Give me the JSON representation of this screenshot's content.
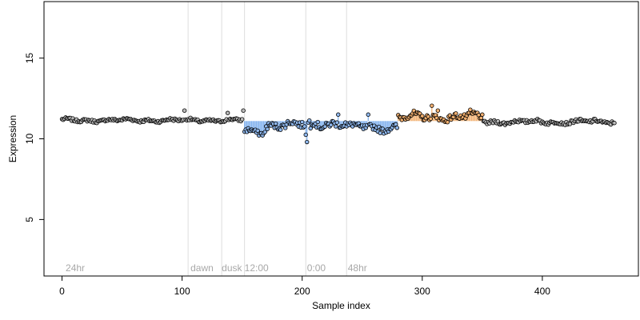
{
  "chart_data": {
    "type": "scatter",
    "title": "",
    "xlabel": "Sample index",
    "ylabel": "Expression",
    "xlim": [
      -15,
      480
    ],
    "ylim": [
      1.5,
      18.5
    ],
    "xticks": [
      0,
      100,
      200,
      300,
      400
    ],
    "yticks": [
      5,
      10,
      15
    ],
    "baseline": 11.1,
    "colors": {
      "point_outline": "#000000",
      "point_neutral": "#bbbbbb",
      "point_low": "#8fb8ee",
      "point_high": "#f2b070",
      "stem_low": "#7fb0ee",
      "stem_high": "#f2b070",
      "vline": "#dddddd",
      "region_label": "#a8a8a8"
    },
    "vlines": [
      105,
      133,
      152,
      203,
      237
    ],
    "region_labels": [
      {
        "text": "24hr",
        "x": 3
      },
      {
        "text": "dawn",
        "x": 107
      },
      {
        "text": "dusk",
        "x": 133
      },
      {
        "text": "12:00",
        "x": 152
      },
      {
        "text": "0:00",
        "x": 204
      },
      {
        "text": "48hr",
        "x": 238
      }
    ],
    "region_label_y": 2.0,
    "segments": [
      {
        "x0": 0,
        "x1": 151,
        "group": "neutral",
        "mean": 11.15,
        "amp": 0.13
      },
      {
        "x0": 152,
        "x1": 169,
        "group": "low",
        "mean": 10.45,
        "amp": 0.22
      },
      {
        "x0": 170,
        "x1": 202,
        "group": "low",
        "mean": 10.85,
        "amp": 0.3
      },
      {
        "x0": 203,
        "x1": 236,
        "group": "low",
        "mean": 10.95,
        "amp": 0.32
      },
      {
        "x0": 237,
        "x1": 279,
        "group": "low",
        "mean": 10.7,
        "amp": 0.28
      },
      {
        "x0": 280,
        "x1": 350,
        "group": "high",
        "mean": 11.35,
        "amp": 0.28
      },
      {
        "x0": 351,
        "x1": 460,
        "group": "neutral",
        "mean": 11.05,
        "amp": 0.16
      }
    ],
    "special_points": [
      {
        "x": 102,
        "y": 11.75
      },
      {
        "x": 138,
        "y": 11.6
      },
      {
        "x": 151,
        "y": 11.75
      },
      {
        "x": 203,
        "y": 10.25
      },
      {
        "x": 204,
        "y": 9.8
      },
      {
        "x": 207,
        "y": 10.65
      },
      {
        "x": 230,
        "y": 11.5
      },
      {
        "x": 255,
        "y": 11.5
      },
      {
        "x": 308,
        "y": 12.05
      },
      {
        "x": 313,
        "y": 11.75
      },
      {
        "x": 340,
        "y": 11.8
      },
      {
        "x": 345,
        "y": 11.6
      }
    ]
  }
}
